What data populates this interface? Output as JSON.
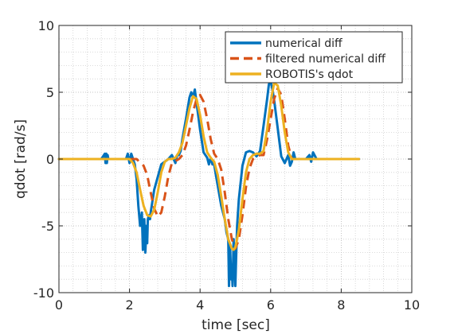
{
  "chart_data": {
    "type": "line",
    "xlabel": "time [sec]",
    "ylabel": "qdot [rad/s]",
    "xlim": [
      0,
      10
    ],
    "ylim": [
      -10,
      10
    ],
    "x_ticks": [
      "0",
      "2",
      "4",
      "6",
      "8",
      "10"
    ],
    "y_ticks": [
      "10",
      "5",
      "0",
      "-5",
      "-10"
    ],
    "grid": "major and minor (dotted)",
    "legend_position": "top-right",
    "series": [
      {
        "name": "numerical diff",
        "color": "#0072BD",
        "style": "solid",
        "x": [
          0,
          1.2,
          1.3,
          1.32,
          1.34,
          1.36,
          1.38,
          1.4,
          1.5,
          1.9,
          1.95,
          2.0,
          2.05,
          2.1,
          2.15,
          2.2,
          2.25,
          2.3,
          2.35,
          2.38,
          2.42,
          2.45,
          2.48,
          2.5,
          2.52,
          2.55,
          2.58,
          2.6,
          2.7,
          2.9,
          3.1,
          3.2,
          3.3,
          3.35,
          3.4,
          3.45,
          3.5,
          3.6,
          3.7,
          3.75,
          3.8,
          3.85,
          3.9,
          4.0,
          4.1,
          4.2,
          4.25,
          4.3,
          4.35,
          4.4,
          4.45,
          4.5,
          4.6,
          4.7,
          4.75,
          4.8,
          4.82,
          4.85,
          4.88,
          4.9,
          4.92,
          4.95,
          4.98,
          5.0,
          5.02,
          5.05,
          5.1,
          5.2,
          5.3,
          5.4,
          5.5,
          5.6,
          5.7,
          5.8,
          5.9,
          5.95,
          6.0,
          6.05,
          6.1,
          6.2,
          6.3,
          6.4,
          6.5,
          6.55,
          6.6,
          6.65,
          6.7,
          7.0,
          7.1,
          7.15,
          7.2,
          7.3,
          8.5
        ],
        "y": [
          0,
          0,
          0.4,
          -0.3,
          0.4,
          -0.3,
          0.3,
          0,
          0,
          0,
          0.4,
          -0.3,
          0.4,
          0,
          -0.4,
          -1.5,
          -3.5,
          -5.0,
          -4.0,
          -6.8,
          -4.5,
          -7.0,
          -5.0,
          -6.3,
          -4.5,
          -4.2,
          -4.5,
          -4.0,
          -2.3,
          -0.4,
          0,
          0.3,
          -0.3,
          0.3,
          0.3,
          0.6,
          1.5,
          3.0,
          4.6,
          5.0,
          4.6,
          5.2,
          4.2,
          2.2,
          0.5,
          0.1,
          -0.4,
          0.1,
          -0.4,
          -0.4,
          -1.2,
          -2.0,
          -3.5,
          -4.5,
          -5.5,
          -6.0,
          -9.5,
          -6.5,
          -9.0,
          -8.2,
          -9.5,
          -6.0,
          -8.0,
          -9.5,
          -7.5,
          -5.0,
          -3.0,
          -0.5,
          0.5,
          0.6,
          0.5,
          0.2,
          0.6,
          2.5,
          4.5,
          5.6,
          5.8,
          5.2,
          4.4,
          2.3,
          0.2,
          -0.3,
          0.3,
          -0.5,
          -0.2,
          0.5,
          0,
          0,
          0.3,
          -0.2,
          0.5,
          0,
          0
        ]
      },
      {
        "name": "filtered numerical diff",
        "color": "#D95319",
        "style": "dashed",
        "x": [
          0,
          2.0,
          2.2,
          2.4,
          2.5,
          2.6,
          2.7,
          2.8,
          2.9,
          3.0,
          3.1,
          3.2,
          3.4,
          3.5,
          3.6,
          3.7,
          3.8,
          3.9,
          4.0,
          4.1,
          4.2,
          4.3,
          4.4,
          4.5,
          4.6,
          4.7,
          4.8,
          4.9,
          5.0,
          5.1,
          5.2,
          5.3,
          5.4,
          5.5,
          5.6,
          5.7,
          5.8,
          5.9,
          6.0,
          6.1,
          6.2,
          6.3,
          6.4,
          6.5,
          6.6,
          6.7,
          8.5
        ],
        "y": [
          0,
          0,
          0,
          -0.5,
          -1.2,
          -2.5,
          -3.7,
          -4.3,
          -4.0,
          -2.8,
          -1.3,
          -0.3,
          0,
          0.3,
          1.0,
          2.2,
          3.5,
          4.5,
          4.8,
          4.3,
          3.0,
          1.5,
          0.4,
          0,
          -0.8,
          -2.5,
          -4.5,
          -6.0,
          -6.7,
          -6.0,
          -4.2,
          -2.1,
          -0.7,
          0,
          0.2,
          0.3,
          0.3,
          1.5,
          3.0,
          4.5,
          5.3,
          4.8,
          3.0,
          1.0,
          0,
          0,
          0
        ]
      },
      {
        "name": "ROBOTIS's qdot",
        "color": "#EDB120",
        "style": "solid",
        "x": [
          0,
          2.0,
          2.1,
          2.2,
          2.3,
          2.4,
          2.5,
          2.6,
          2.7,
          2.8,
          2.9,
          3.0,
          3.1,
          3.2,
          3.3,
          3.4,
          3.5,
          3.6,
          3.7,
          3.8,
          3.9,
          4.0,
          4.1,
          4.2,
          4.3,
          4.4,
          4.5,
          4.6,
          4.7,
          4.8,
          4.9,
          4.95,
          5.0,
          5.1,
          5.2,
          5.3,
          5.4,
          5.5,
          5.6,
          5.7,
          5.8,
          5.9,
          6.0,
          6.1,
          6.2,
          6.3,
          6.4,
          6.5,
          6.6,
          8.5
        ],
        "y": [
          0,
          0,
          -0.3,
          -1.0,
          -2.3,
          -3.5,
          -4.2,
          -4.3,
          -3.8,
          -2.5,
          -1.0,
          -0.2,
          0,
          0,
          0.1,
          0.5,
          1.2,
          2.5,
          3.8,
          4.7,
          4.5,
          3.3,
          1.7,
          0.5,
          0.1,
          -0.2,
          -1.2,
          -2.8,
          -4.5,
          -6.0,
          -6.7,
          -6.8,
          -6.6,
          -5.3,
          -3.0,
          -1.0,
          0,
          0.3,
          0.4,
          0.4,
          0.6,
          2.2,
          4.3,
          5.7,
          5.5,
          4.0,
          2.0,
          0.5,
          0,
          0
        ]
      }
    ]
  }
}
